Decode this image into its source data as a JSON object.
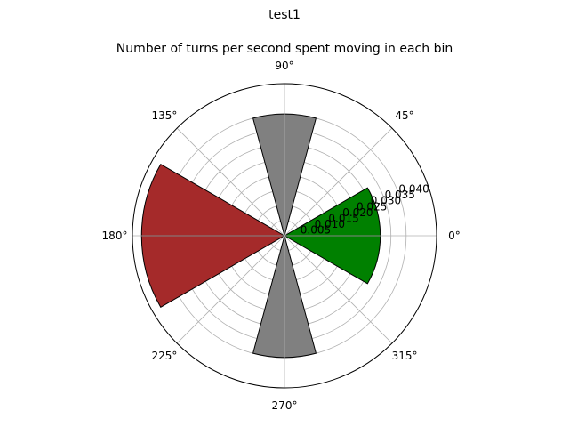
{
  "chart_data": {
    "type": "polar-bar",
    "suptitle": "test1",
    "title": "Number of turns per second spent moving in each bin",
    "r_ticks": [
      0.005,
      0.01,
      0.015,
      0.02,
      0.025,
      0.03,
      0.035,
      0.04
    ],
    "r_tick_labels": [
      "0.005",
      "0.010",
      "0.015",
      "0.020",
      "0.025",
      "0.030",
      "0.035",
      "0.040"
    ],
    "rlim": [
      0,
      0.05
    ],
    "theta_tick_labels": [
      "0°",
      "45°",
      "90°",
      "135°",
      "180°",
      "225°",
      "270°",
      "315°"
    ],
    "theta_tick_angles_deg": [
      0,
      45,
      90,
      135,
      180,
      225,
      270,
      315
    ],
    "bar_width_deg": 30,
    "bars": [
      {
        "center_deg": 15,
        "value": 0.0315,
        "color": "#008000"
      },
      {
        "center_deg": 345,
        "value": 0.0315,
        "color": "#008000"
      },
      {
        "center_deg": 90,
        "value": 0.04,
        "color": "#808080"
      },
      {
        "center_deg": 270,
        "value": 0.04,
        "color": "#808080"
      },
      {
        "center_deg": 165,
        "value": 0.047,
        "color": "#a52a2a"
      },
      {
        "center_deg": 195,
        "value": 0.047,
        "color": "#a52a2a"
      }
    ],
    "edge_color": "#000000",
    "grid": true
  }
}
